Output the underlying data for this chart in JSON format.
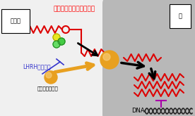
{
  "title_text": "変異アンドロゲン受容体",
  "title_color": "#ff0000",
  "cytoplasm_label": "細胞質",
  "nucleus_label": "核",
  "lhrh_label": "LHRHアナログ",
  "testosterone_label": "テストステロン",
  "dna_label": "DNA",
  "red": "#dd0000",
  "orange": "#e8a020",
  "black": "#000000",
  "purple": "#aa00aa",
  "blue": "#3333cc",
  "cell_bg": "#f0f0f0",
  "nucleus_bg": "#b8b8b8"
}
